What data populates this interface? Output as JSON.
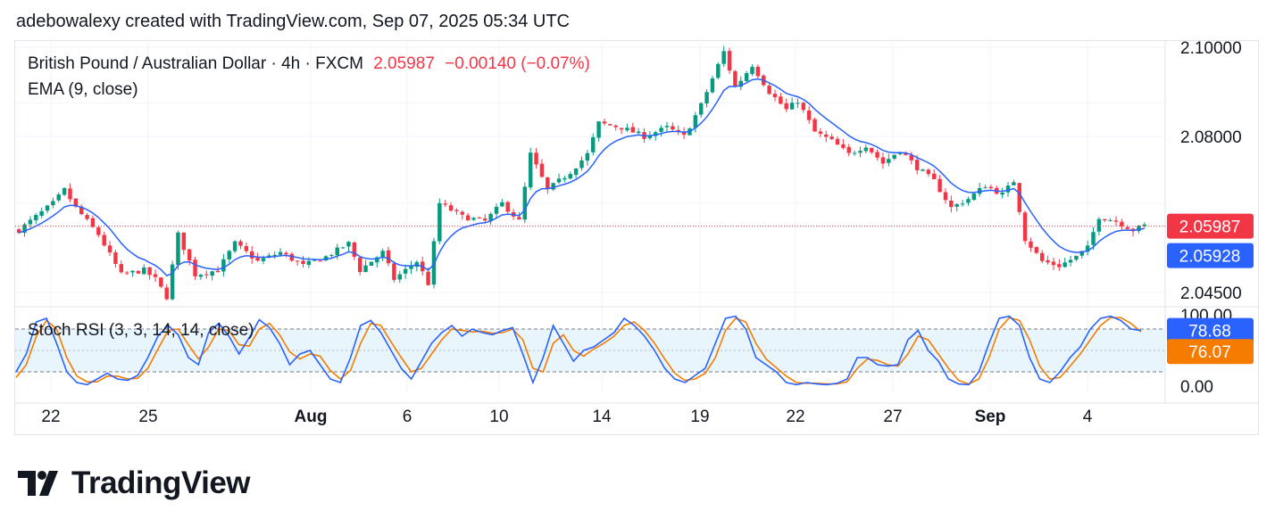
{
  "header": {
    "attribution": "adebowalexy created with TradingView.com, Sep 07, 2025 05:34 UTC"
  },
  "legend": {
    "symbol": "British Pound / Australian Dollar · 4h · FXCM",
    "price": "2.05987",
    "change": "−0.00140 (−0.07%)",
    "ema": "EMA (9, close)",
    "stoch": "Stoch RSI (3, 3, 14, 14, close)"
  },
  "colors": {
    "up": "#089981",
    "down": "#f23645",
    "ema": "#2962ff",
    "k_line": "#2962ff",
    "d_line": "#f57c00",
    "band_fill": "#e3f2fd"
  },
  "footer": {
    "brand": "TradingView",
    "logo_icon": "tradingview-logo-icon"
  },
  "chart_data": [
    {
      "type": "candlestick",
      "title": "British Pound / Australian Dollar · 4h · FXCM",
      "x_tick_labels": [
        "22",
        "25",
        "Aug",
        "6",
        "10",
        "14",
        "19",
        "22",
        "27",
        "Sep",
        "4"
      ],
      "y_tick_labels": [
        "2.10000",
        "2.08000",
        "2.04500"
      ],
      "ylim": [
        2.042,
        2.101
      ],
      "last_price": 2.05987,
      "last_price_label": "2.05987",
      "ema_label": "2.05928",
      "ema_value": 2.05928,
      "grid": true,
      "close_path": [
        [
          0,
          2.059
        ],
        [
          6,
          2.065
        ],
        [
          8,
          2.068
        ],
        [
          10,
          2.064
        ],
        [
          14,
          2.058
        ],
        [
          18,
          2.049
        ],
        [
          22,
          2.05
        ],
        [
          24,
          2.048
        ],
        [
          26,
          2.044
        ],
        [
          28,
          2.058
        ],
        [
          31,
          2.049
        ],
        [
          35,
          2.05
        ],
        [
          38,
          2.056
        ],
        [
          42,
          2.052
        ],
        [
          46,
          2.054
        ],
        [
          50,
          2.051
        ],
        [
          54,
          2.053
        ],
        [
          58,
          2.056
        ],
        [
          60,
          2.05
        ],
        [
          64,
          2.054
        ],
        [
          66,
          2.048
        ],
        [
          70,
          2.052
        ],
        [
          72,
          2.047
        ],
        [
          74,
          2.065
        ],
        [
          78,
          2.062
        ],
        [
          82,
          2.061
        ],
        [
          85,
          2.065
        ],
        [
          88,
          2.061
        ],
        [
          90,
          2.076
        ],
        [
          93,
          2.068
        ],
        [
          97,
          2.072
        ],
        [
          100,
          2.076
        ],
        [
          102,
          2.083
        ],
        [
          106,
          2.082
        ],
        [
          110,
          2.08
        ],
        [
          114,
          2.082
        ],
        [
          117,
          2.08
        ],
        [
          120,
          2.087
        ],
        [
          122,
          2.093
        ],
        [
          124,
          2.099
        ],
        [
          126,
          2.091
        ],
        [
          129,
          2.096
        ],
        [
          132,
          2.09
        ],
        [
          135,
          2.086
        ],
        [
          137,
          2.088
        ],
        [
          140,
          2.081
        ],
        [
          143,
          2.079
        ],
        [
          146,
          2.076
        ],
        [
          149,
          2.078
        ],
        [
          152,
          2.074
        ],
        [
          155,
          2.077
        ],
        [
          158,
          2.073
        ],
        [
          161,
          2.07
        ],
        [
          164,
          2.064
        ],
        [
          167,
          2.066
        ],
        [
          170,
          2.069
        ],
        [
          173,
          2.067
        ],
        [
          175,
          2.07
        ],
        [
          177,
          2.057
        ],
        [
          180,
          2.052
        ],
        [
          183,
          2.051
        ],
        [
          186,
          2.053
        ],
        [
          188,
          2.055
        ],
        [
          190,
          2.062
        ],
        [
          193,
          2.061
        ],
        [
          196,
          2.059
        ],
        [
          198,
          2.06
        ]
      ],
      "ema": {
        "name": "EMA (9, close)",
        "period": 9
      }
    },
    {
      "type": "line",
      "title": "Stoch RSI (3, 3, 14, 14, close)",
      "y_tick_labels": [
        "100.00",
        "0.00"
      ],
      "ylim": [
        0,
        100
      ],
      "bands": [
        20,
        80
      ],
      "k_label": "78.68",
      "d_label": "76.07",
      "series": [
        {
          "values": [
            20,
            45,
            90,
            95,
            60,
            20,
            5,
            2,
            10,
            18,
            10,
            8,
            15,
            40,
            70,
            85,
            72,
            40,
            30,
            75,
            88,
            70,
            45,
            68,
            93,
            82,
            60,
            30,
            45,
            50,
            30,
            10,
            5,
            40,
            85,
            92,
            75,
            50,
            25,
            10,
            35,
            60,
            75,
            85,
            70,
            80,
            75,
            72,
            78,
            82,
            45,
            5,
            40,
            85,
            60,
            35,
            50,
            55,
            65,
            75,
            95,
            85,
            70,
            50,
            25,
            10,
            5,
            15,
            25,
            60,
            95,
            98,
            80,
            40,
            30,
            20,
            5,
            2,
            5,
            3,
            2,
            4,
            10,
            40,
            40,
            30,
            28,
            30,
            65,
            78,
            50,
            35,
            10,
            3,
            2,
            20,
            60,
            95,
            98,
            85,
            40,
            10,
            5,
            20,
            40,
            55,
            80,
            95,
            98,
            92,
            80,
            78
          ]
        },
        {
          "values": [
            12,
            30,
            70,
            92,
            80,
            40,
            14,
            6,
            6,
            14,
            14,
            10,
            11,
            25,
            52,
            78,
            80,
            58,
            38,
            55,
            80,
            78,
            58,
            56,
            80,
            88,
            72,
            48,
            38,
            45,
            42,
            22,
            10,
            22,
            60,
            88,
            85,
            62,
            40,
            20,
            25,
            45,
            65,
            80,
            78,
            76,
            77,
            74,
            75,
            80,
            65,
            25,
            20,
            60,
            72,
            50,
            42,
            52,
            60,
            70,
            85,
            90,
            78,
            60,
            38,
            18,
            8,
            10,
            18,
            40,
            78,
            95,
            90,
            60,
            38,
            26,
            14,
            5,
            4,
            4,
            3,
            3,
            6,
            25,
            38,
            36,
            30,
            28,
            45,
            70,
            65,
            45,
            25,
            8,
            3,
            10,
            40,
            80,
            96,
            92,
            65,
            28,
            10,
            12,
            28,
            45,
            65,
            85,
            96,
            96,
            88,
            76
          ]
        }
      ]
    }
  ]
}
